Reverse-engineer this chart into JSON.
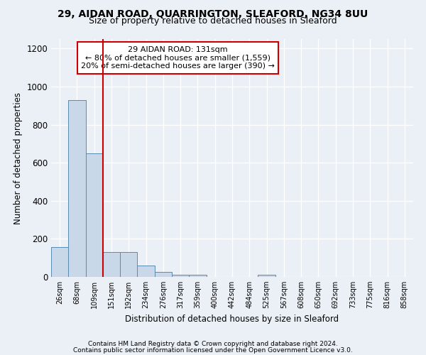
{
  "title": "29, AIDAN ROAD, QUARRINGTON, SLEAFORD, NG34 8UU",
  "subtitle": "Size of property relative to detached houses in Sleaford",
  "xlabel": "Distribution of detached houses by size in Sleaford",
  "ylabel": "Number of detached properties",
  "categories": [
    "26sqm",
    "68sqm",
    "109sqm",
    "151sqm",
    "192sqm",
    "234sqm",
    "276sqm",
    "317sqm",
    "359sqm",
    "400sqm",
    "442sqm",
    "484sqm",
    "525sqm",
    "567sqm",
    "608sqm",
    "650sqm",
    "692sqm",
    "733sqm",
    "775sqm",
    "816sqm",
    "858sqm"
  ],
  "values": [
    155,
    930,
    650,
    130,
    130,
    58,
    25,
    12,
    12,
    0,
    0,
    0,
    12,
    0,
    0,
    0,
    0,
    0,
    0,
    0,
    0
  ],
  "bar_color": "#c8d8e8",
  "bar_edge_color": "#5a8ab0",
  "red_line_x": 2.5,
  "annotation_line1": "29 AIDAN ROAD: 131sqm",
  "annotation_line2": "← 80% of detached houses are smaller (1,559)",
  "annotation_line3": "20% of semi-detached houses are larger (390) →",
  "annotation_box_color": "#ffffff",
  "annotation_box_edge": "#cc0000",
  "red_line_color": "#cc0000",
  "footer1": "Contains HM Land Registry data © Crown copyright and database right 2024.",
  "footer2": "Contains public sector information licensed under the Open Government Licence v3.0.",
  "ylim": [
    0,
    1250
  ],
  "yticks": [
    0,
    200,
    400,
    600,
    800,
    1000,
    1200
  ],
  "background_color": "#eaf0f6",
  "grid_color": "#ffffff",
  "title_fontsize": 10,
  "subtitle_fontsize": 9,
  "annotation_fontsize": 8,
  "footer_fontsize": 6.5
}
